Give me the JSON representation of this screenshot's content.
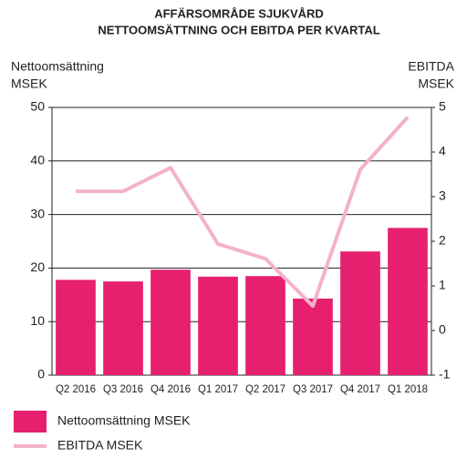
{
  "chart_data": {
    "type": "bar_line",
    "title": [
      "AFFÄRSOMRÅDE SJUKVÅRD",
      "NETTOOMSÄTTNING OCH EBITDA PER KVARTAL"
    ],
    "ylabel": [
      "Nettoomsättning",
      "MSEK"
    ],
    "y2label": [
      "EBITDA",
      "MSEK"
    ],
    "categories": [
      "Q2 2016",
      "Q3 2016",
      "Q4 2016",
      "Q1 2017",
      "Q2 2017",
      "Q3 2017",
      "Q4 2017",
      "Q1 2018"
    ],
    "series": [
      {
        "name": "Nettoomsättning MSEK",
        "color": "#e6206f",
        "type": "bar",
        "values": [
          17.8,
          17.5,
          19.7,
          18.4,
          18.5,
          14.3,
          23.1,
          27.5
        ]
      },
      {
        "name": "EBITDA MSEK",
        "color": "#f4b2c8",
        "type": "line",
        "axis": "y2",
        "values": [
          3.12,
          3.12,
          3.65,
          1.94,
          1.61,
          0.55,
          3.61,
          4.78
        ]
      }
    ],
    "ylim": [
      0,
      50
    ],
    "yticks": [
      0,
      10,
      20,
      30,
      40,
      50
    ],
    "y2lim": [
      -1,
      5
    ],
    "y2ticks": [
      -1,
      0,
      1,
      2,
      3,
      4,
      5
    ],
    "grid": true
  }
}
